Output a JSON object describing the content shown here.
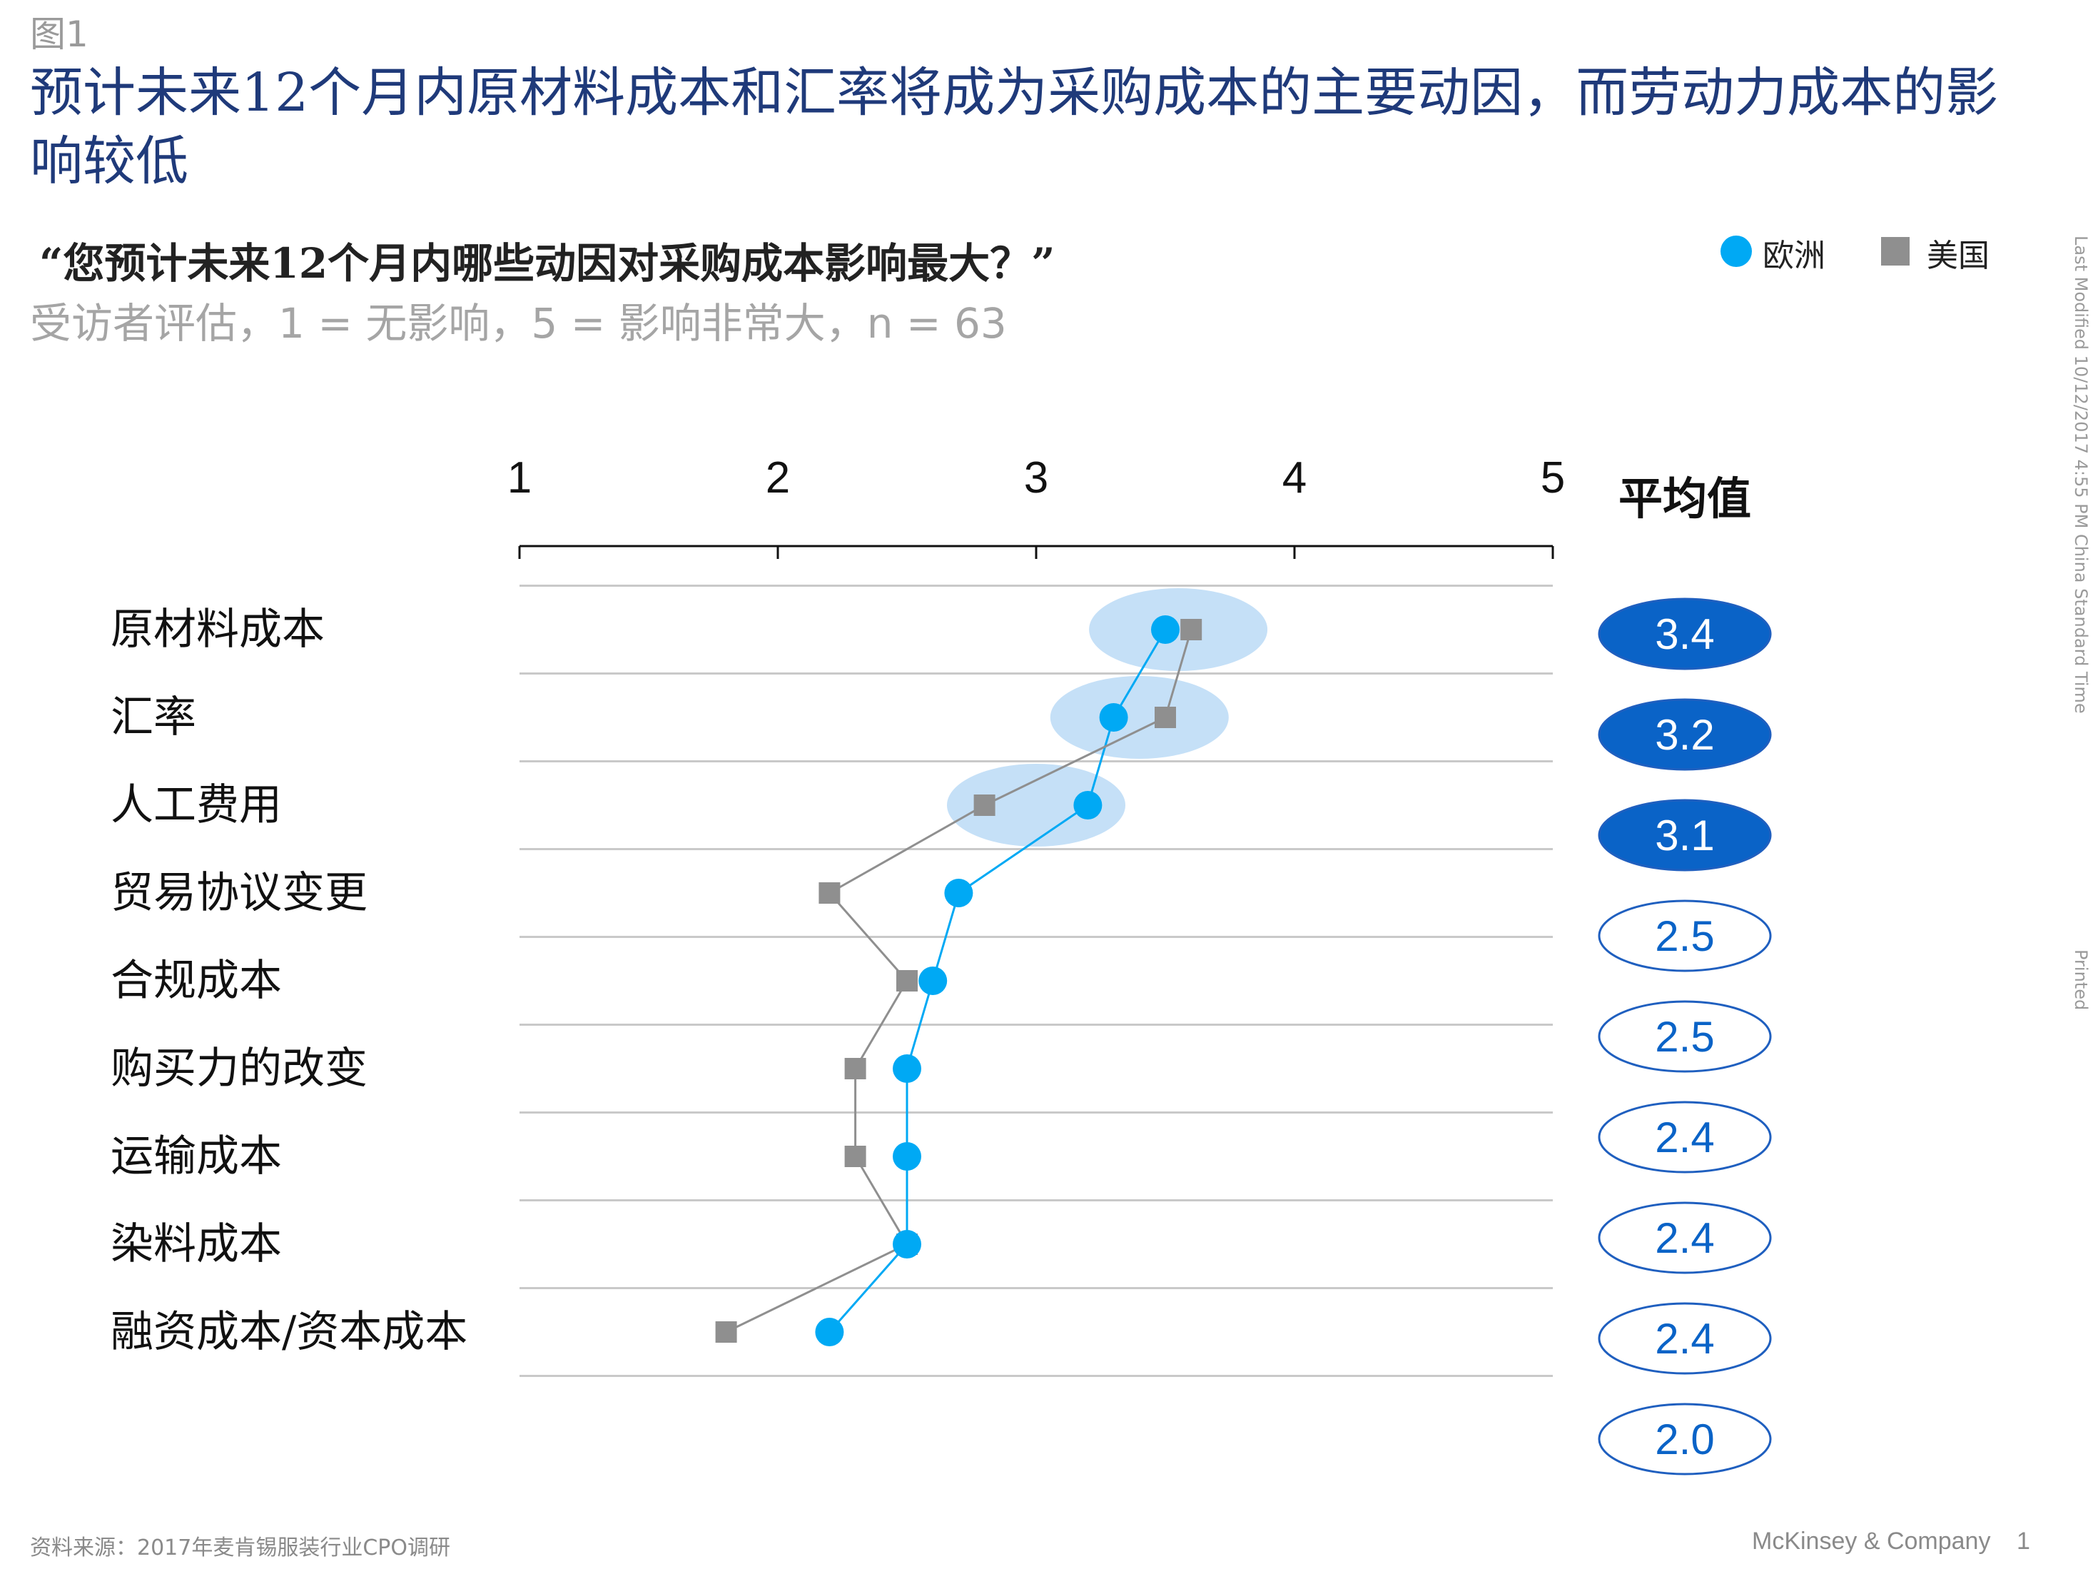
{
  "figure_label": "图1",
  "title": "预计未来12个月内原材料成本和汇率将成为采购成本的主要动因，而劳动力成本的影响较低",
  "question": "“您预计未来12个月内哪些动因对采购成本影响最大？”",
  "subtitle": "受访者评估，1 = 无影响，5 = 影响非常大，n = 63",
  "legend": {
    "europe": "欧洲",
    "usa": "美国"
  },
  "side_notes": {
    "last_modified": "Last Modified 10/12/2017 4:55 PM China Standard Time",
    "printed": "Printed"
  },
  "source": "资料来源：2017年麦肯锡服装行业CPO调研",
  "footer": {
    "company": "McKinsey & Company",
    "page": "1"
  },
  "colors": {
    "europe": "#00a9f4",
    "usa": "#8f8f8f",
    "highlight": "#c5e0f7",
    "avg_fill": "#0a63c7",
    "avg_stroke": "#1f5fbf"
  },
  "chart_data": {
    "type": "scatter",
    "xlim": [
      1,
      5
    ],
    "x_ticks": [
      "1",
      "2",
      "3",
      "4",
      "5"
    ],
    "categories": [
      "原材料成本",
      "汇率",
      "人工费用",
      "贸易协议变更",
      "合规成本",
      "购买力的改变",
      "运输成本",
      "染料成本",
      "融资成本/资本成本"
    ],
    "series": [
      {
        "name": "欧洲",
        "values": [
          3.5,
          3.3,
          3.2,
          2.7,
          2.6,
          2.5,
          2.5,
          2.5,
          2.2
        ]
      },
      {
        "name": "美国",
        "values": [
          3.6,
          3.5,
          2.8,
          2.2,
          2.5,
          2.3,
          2.3,
          2.5,
          1.8
        ]
      }
    ],
    "highlighted_categories": [
      0,
      1,
      2
    ],
    "average_title": "平均值",
    "averages": [
      "3.4",
      "3.2",
      "3.1",
      "2.5",
      "2.5",
      "2.4",
      "2.4",
      "2.4",
      "2.0"
    ],
    "averages_filled": [
      true,
      true,
      true,
      false,
      false,
      false,
      false,
      false,
      false
    ]
  }
}
